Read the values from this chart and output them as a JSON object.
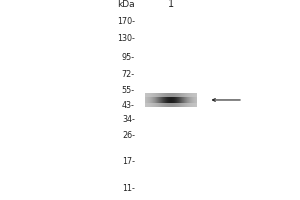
{
  "outer_bg": "#ffffff",
  "gel_bg": "#c8c8c8",
  "lane_bg": "#bebebe",
  "marker_labels": [
    "170-",
    "130-",
    "95-",
    "72-",
    "55-",
    "43-",
    "34-",
    "26-",
    "17-",
    "11-"
  ],
  "marker_kda": [
    170,
    130,
    95,
    72,
    55,
    43,
    34,
    26,
    17,
    11
  ],
  "kda_label": "kDa",
  "lane_label": "1",
  "band_kda": 47,
  "band_color": "#111111",
  "arrow_color": "#222222",
  "log_min": 10,
  "log_max": 200,
  "fig_width": 3.0,
  "fig_height": 2.0,
  "dpi": 100
}
